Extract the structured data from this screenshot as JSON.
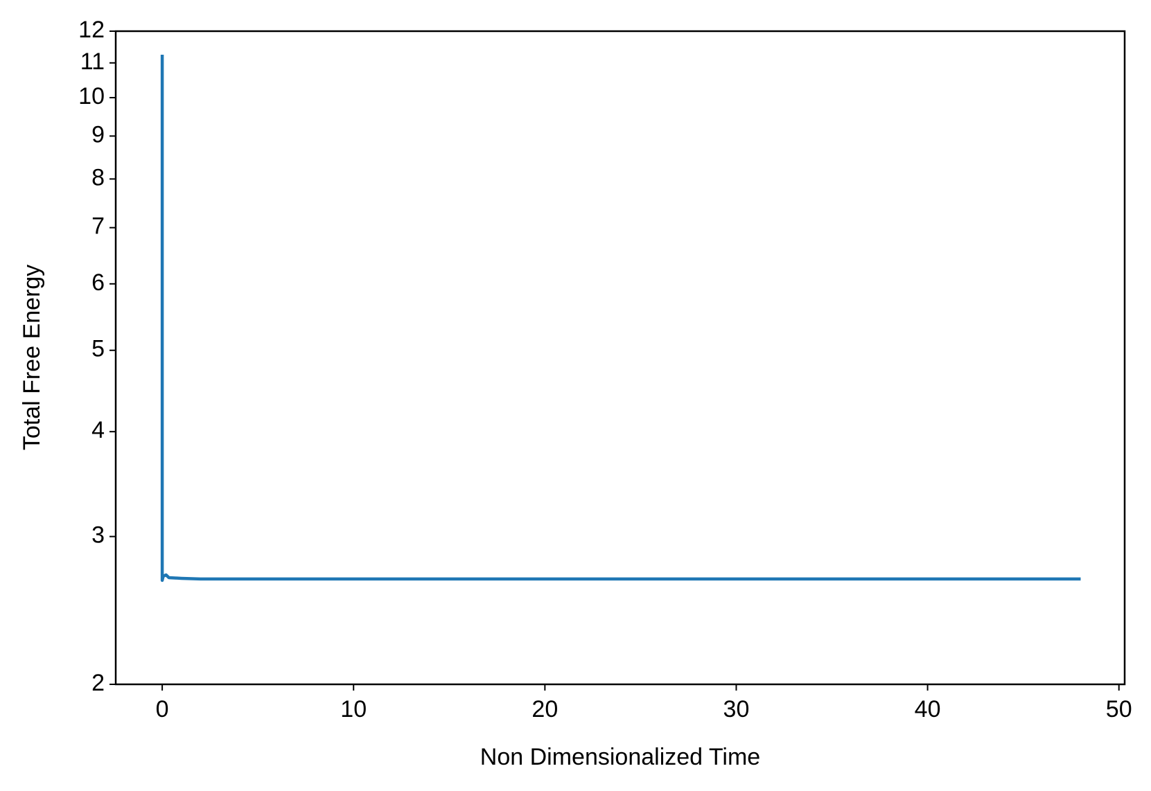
{
  "chart_data": {
    "type": "line",
    "xlabel": "Non Dimensionalized Time",
    "ylabel": "Total Free Energy",
    "x": [
      0,
      0,
      0.05,
      0.2,
      0.35,
      1,
      2,
      5,
      10,
      20,
      30,
      40,
      48
    ],
    "series": [
      {
        "color": "#1f77b4",
        "values": [
          11.25,
          2.66,
          2.69,
          2.7,
          2.68,
          2.675,
          2.67,
          2.67,
          2.67,
          2.67,
          2.67,
          2.67,
          2.67
        ]
      }
    ],
    "xlim": [
      -2.43,
      50.3
    ],
    "ylim": [
      2,
      12
    ],
    "xticks": [
      0,
      10,
      20,
      30,
      40,
      50
    ],
    "yticks": [
      2,
      3,
      4,
      5,
      6,
      7,
      8,
      9,
      10,
      11,
      12
    ],
    "yscale": "log",
    "grid": false
  }
}
